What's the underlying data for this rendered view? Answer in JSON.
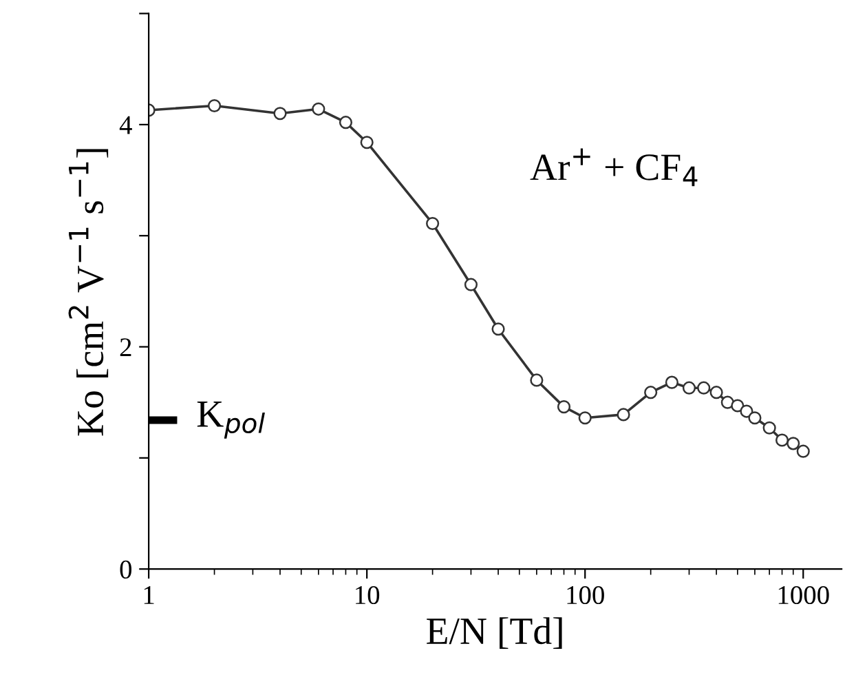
{
  "chart_data": {
    "type": "line",
    "xlabel": "E/N [Td]",
    "ylabel": "Ko [cm$^{2}$ V$^{−1}$ s$^{−1}$]",
    "log": "x",
    "xlim": [
      1,
      1500
    ],
    "xticks": [
      1,
      10,
      100,
      1000
    ],
    "ylim": [
      0,
      5
    ],
    "yticks": [
      0,
      {
        "value": 1,
        "label": null
      },
      2,
      {
        "value": 3,
        "label": null
      },
      4,
      {
        "value": 5,
        "label": null
      }
    ],
    "grid": false,
    "legend": false,
    "marker": "circle",
    "line_style": "solid",
    "annotations": [
      "Ar$^{+}$ + CF$_{4}$"
    ],
    "series": [
      {
        "color": "#333333",
        "x": [
          1,
          2,
          4,
          6,
          8,
          10,
          20,
          30,
          40,
          60,
          80,
          100,
          150,
          200,
          250,
          300,
          350,
          400,
          450,
          500,
          550,
          600,
          700,
          800,
          900,
          1000
        ],
        "values": [
          4.13,
          4.17,
          4.1,
          4.14,
          4.02,
          3.84,
          3.11,
          2.56,
          2.16,
          1.7,
          1.46,
          1.36,
          1.39,
          1.59,
          1.68,
          1.63,
          1.63,
          1.59,
          1.5,
          1.47,
          1.42,
          1.36,
          1.27,
          1.16,
          1.13,
          1.06
        ]
      },
      {
        "name": "K$_{pol}$",
        "color": "#000000",
        "type": "line",
        "marker": "none",
        "x": [
          1,
          1.35
        ],
        "values": [
          1.34,
          1.34
        ]
      }
    ]
  }
}
